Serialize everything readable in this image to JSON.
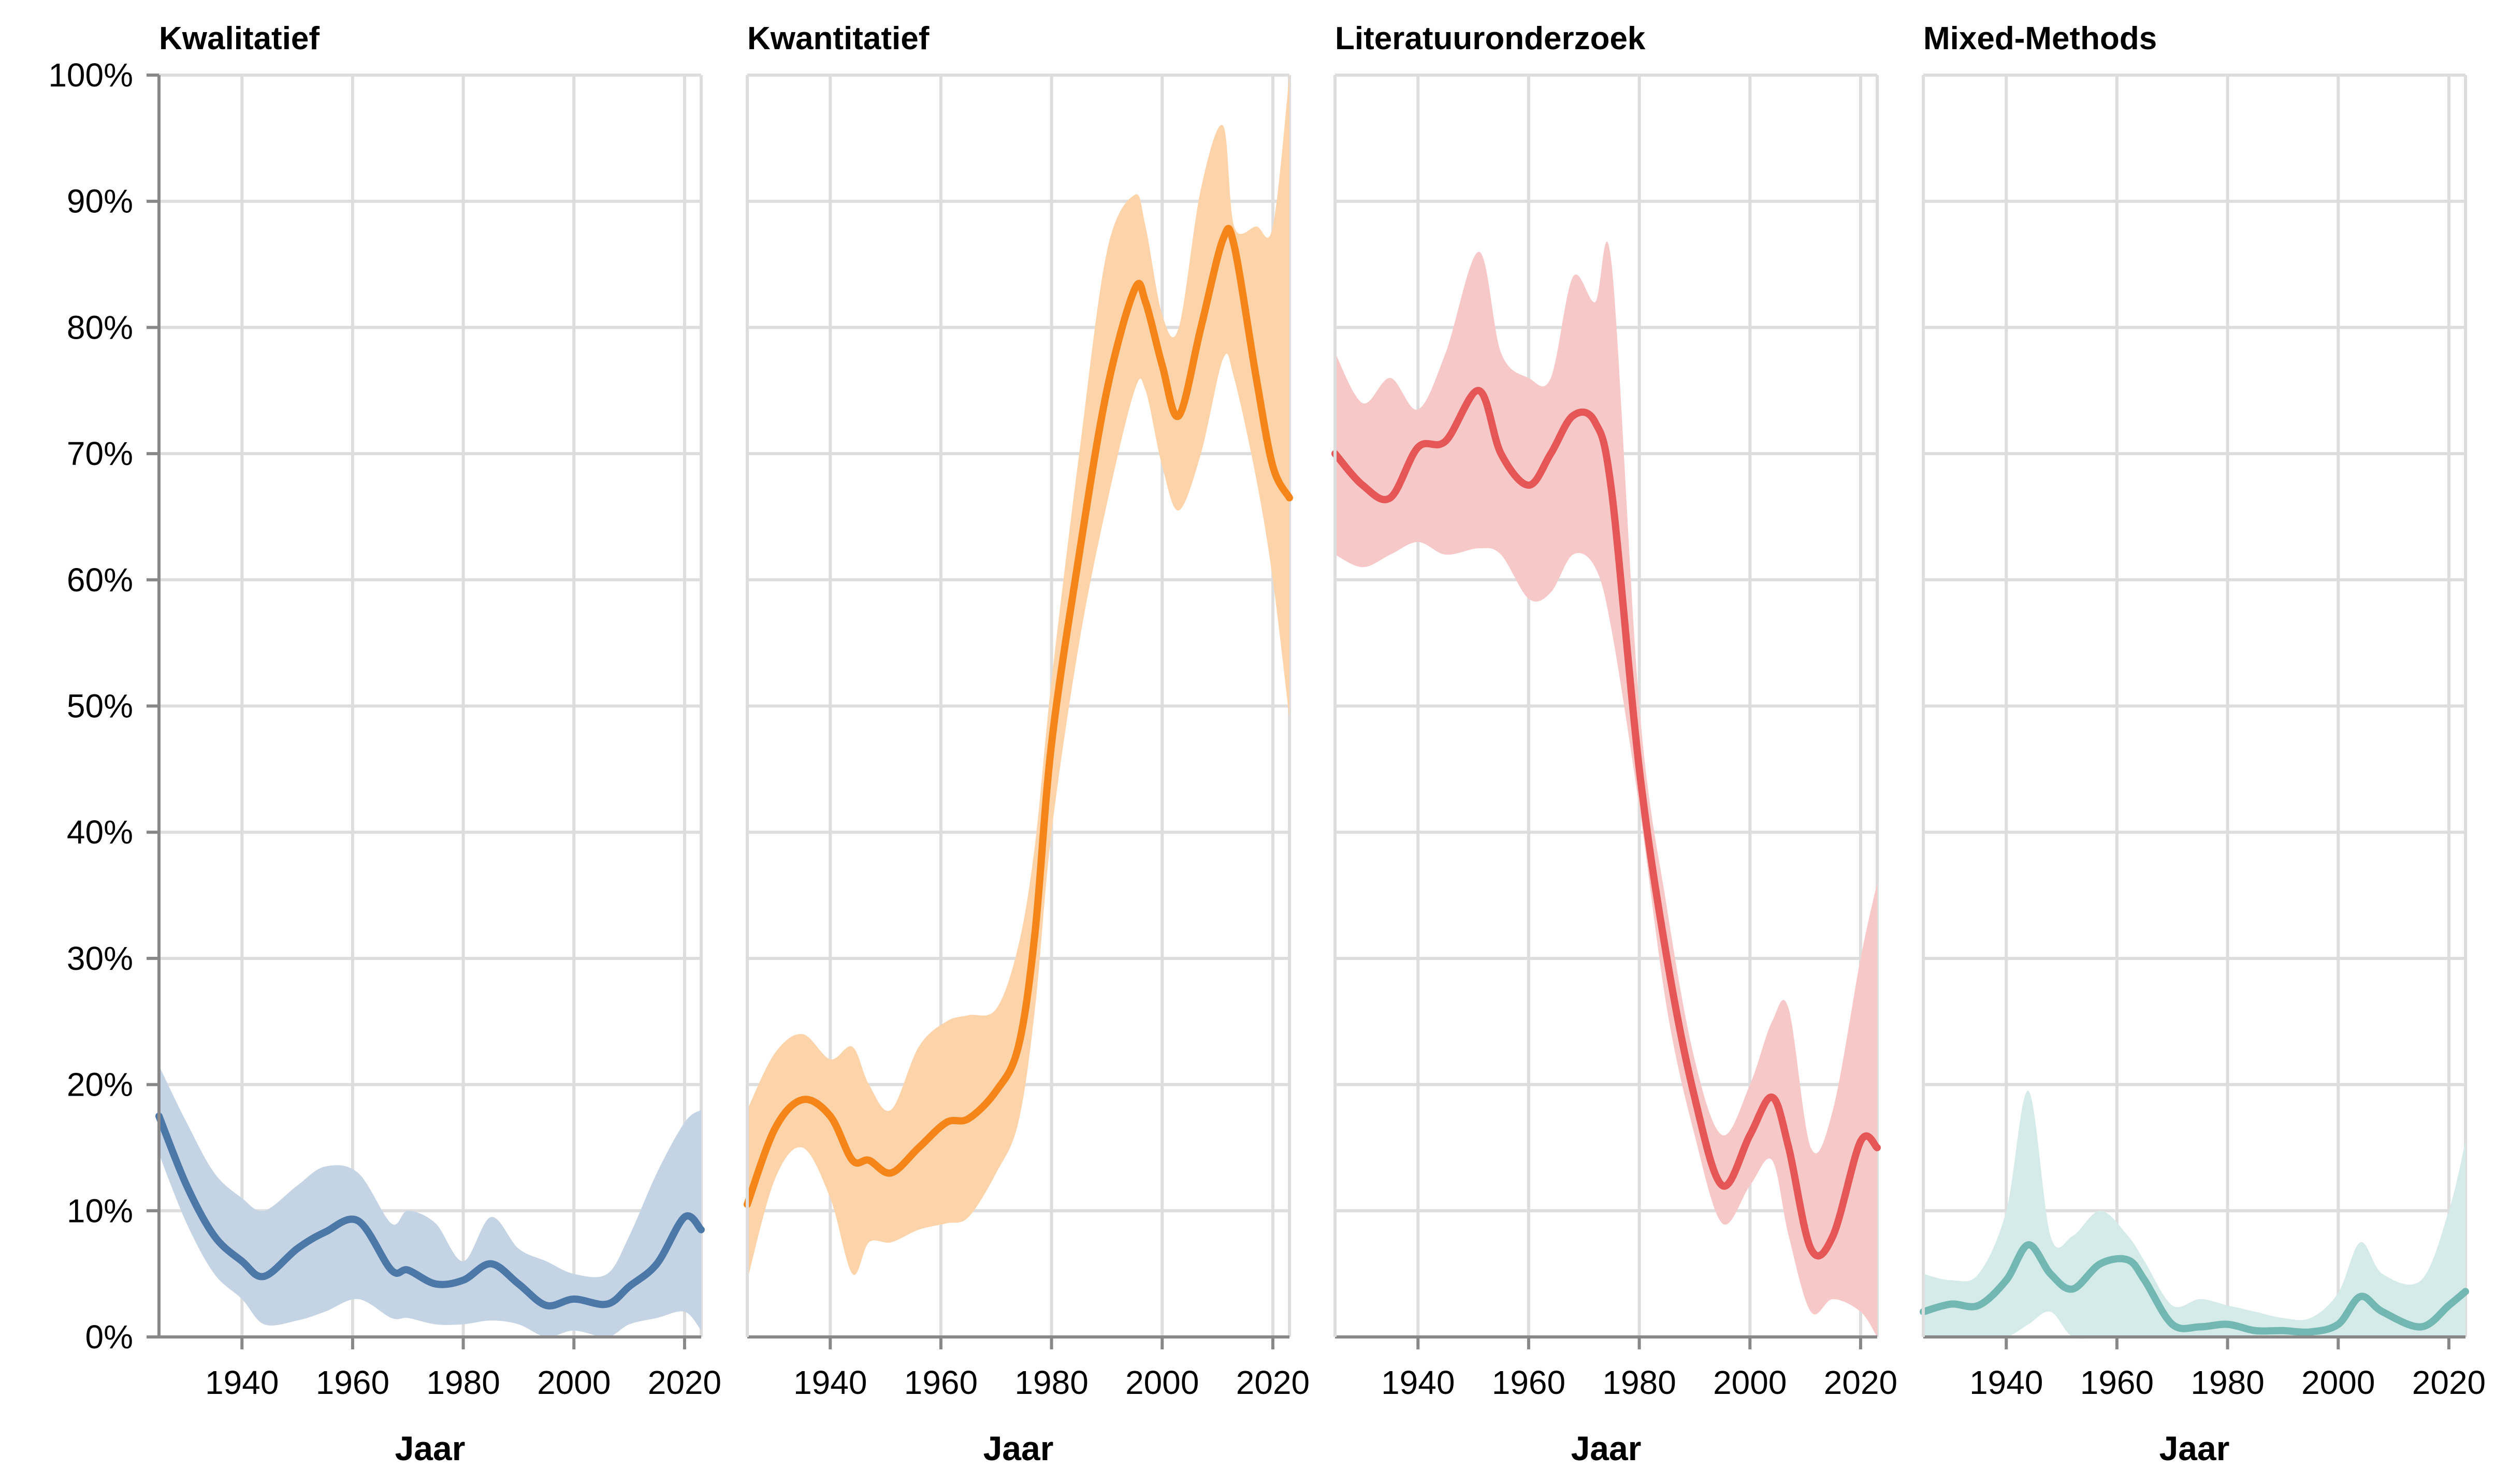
{
  "chart_data": {
    "type": "area",
    "xlabel": "Jaar",
    "ylabel": "",
    "xlim": [
      1925,
      2023
    ],
    "ylim": [
      0,
      100
    ],
    "x_ticks": [
      1940,
      1960,
      1980,
      2000,
      2020
    ],
    "y_ticks": [
      0,
      10,
      20,
      30,
      40,
      50,
      60,
      70,
      80,
      90,
      100
    ],
    "y_tick_labels": [
      "0%",
      "10%",
      "20%",
      "30%",
      "40%",
      "50%",
      "60%",
      "70%",
      "80%",
      "90%",
      "100%"
    ],
    "grid": true,
    "legend": "none",
    "panels": [
      {
        "name": "Kwalitatief",
        "color": "#4c78a8",
        "band_color": "#c5d4e5",
        "x": [
          1925,
          1930,
          1935,
          1940,
          1944,
          1950,
          1955,
          1961,
          1967,
          1970,
          1975,
          1980,
          1985,
          1990,
          1995,
          2000,
          2006,
          2010,
          2015,
          2020,
          2023
        ],
        "values": [
          17.5,
          12,
          8,
          6,
          4.8,
          7,
          8.3,
          9.2,
          5.3,
          5.3,
          4.2,
          4.5,
          5.8,
          4.2,
          2.5,
          3,
          2.6,
          4,
          5.8,
          9.5,
          8.5
        ],
        "lower": [
          14.5,
          9,
          5,
          3,
          1,
          1.3,
          2,
          3,
          1.5,
          1.5,
          1,
          1,
          1.3,
          1,
          0,
          0.5,
          0,
          1,
          1.5,
          2,
          0.5
        ],
        "upper": [
          21.5,
          17,
          13,
          11,
          10,
          12,
          13.5,
          13,
          9,
          10,
          9,
          6,
          9.5,
          7,
          6,
          5,
          5,
          8,
          13,
          17,
          18
        ]
      },
      {
        "name": "Kwantitatief",
        "color": "#f58518",
        "band_color": "#fdd3aa",
        "x": [
          1925,
          1930,
          1935,
          1940,
          1944,
          1947,
          1951,
          1956,
          1961,
          1965,
          1970,
          1974,
          1977,
          1980,
          1985,
          1990,
          1995,
          1997,
          2000,
          2003,
          2007,
          2011,
          2013,
          2017,
          2020,
          2023
        ],
        "values": [
          10.5,
          16.5,
          18.8,
          17.5,
          14,
          14,
          13,
          15,
          17,
          17.3,
          19.5,
          23,
          32,
          47,
          62,
          75,
          83,
          82,
          77,
          73,
          80,
          87,
          86.5,
          76,
          69,
          66.5
        ],
        "lower": [
          4.5,
          12.5,
          15,
          11,
          5,
          7.5,
          7.5,
          8.5,
          9,
          9.5,
          13,
          17,
          26,
          40,
          55,
          66,
          75,
          75,
          69,
          65.5,
          70,
          77.5,
          76,
          68,
          60,
          49
        ],
        "upper": [
          18,
          22.5,
          24,
          22,
          23,
          20,
          18,
          23,
          25,
          25.5,
          26,
          31,
          39,
          52,
          70,
          86,
          90.5,
          88,
          81,
          80,
          91,
          96,
          88,
          88,
          88,
          100
        ]
      },
      {
        "name": "Literatuuronderzoek",
        "color": "#e45756",
        "band_color": "#f7c8c8",
        "x": [
          1925,
          1930,
          1935,
          1940,
          1945,
          1951,
          1955,
          1960,
          1964,
          1968,
          1972,
          1975,
          1980,
          1985,
          1990,
          1995,
          2000,
          2004,
          2007,
          2011,
          2015,
          2020,
          2023
        ],
        "values": [
          70,
          67.5,
          66.5,
          70.5,
          71,
          75,
          70,
          67.5,
          70,
          73,
          72.5,
          67,
          45,
          30,
          19,
          12,
          16,
          19,
          15,
          7,
          8,
          15.5,
          15
        ],
        "lower": [
          62,
          61,
          62,
          63,
          62,
          62.5,
          62,
          58.5,
          59,
          62,
          61,
          56,
          42,
          26,
          16,
          9,
          12,
          14,
          8,
          2,
          3,
          2,
          0
        ],
        "upper": [
          78,
          74,
          76,
          73.5,
          78,
          86,
          78,
          76,
          76,
          84,
          82,
          85,
          50,
          34,
          22,
          16,
          20,
          25,
          26,
          15,
          18,
          30,
          36
        ]
      },
      {
        "name": "Mixed-Methods",
        "color": "#72b7b2",
        "band_color": "#d5ebe9",
        "x": [
          1925,
          1930,
          1935,
          1940,
          1944,
          1948,
          1952,
          1957,
          1962,
          1965,
          1970,
          1975,
          1980,
          1985,
          1990,
          1995,
          2000,
          2004,
          2008,
          2015,
          2020,
          2023
        ],
        "values": [
          2,
          2.6,
          2.5,
          4.5,
          7.3,
          5,
          3.8,
          5.8,
          6.1,
          4.5,
          1,
          0.8,
          1,
          0.5,
          0.5,
          0.4,
          1,
          3.2,
          2,
          0.8,
          2.5,
          3.6
        ],
        "lower": [
          0,
          0,
          0,
          0,
          1,
          2,
          0,
          0,
          0,
          0,
          0,
          0,
          0,
          0,
          0,
          0,
          0,
          0,
          0,
          0,
          0,
          0
        ],
        "upper": [
          5,
          4.5,
          5,
          10,
          19.5,
          8,
          8,
          10,
          8,
          6,
          2.5,
          3,
          2.5,
          2,
          1.5,
          1.5,
          3.5,
          7.5,
          5,
          4.5,
          10,
          15.5
        ]
      }
    ]
  }
}
